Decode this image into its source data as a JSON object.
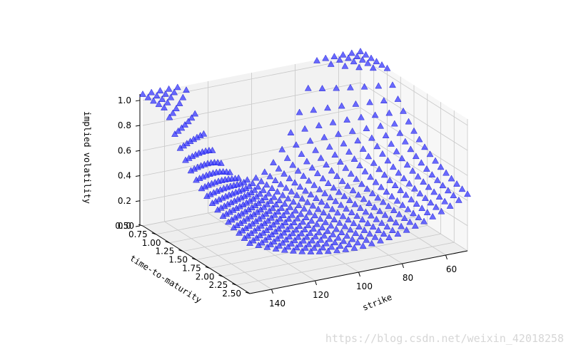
{
  "chart_data": {
    "type": "scatter",
    "projection": "3d",
    "marker": "triangle-up",
    "colors": {
      "marker_fill": "#3a3aff",
      "marker_edge": "#0000cc",
      "pane_left": "#f2f2f2",
      "pane_right": "#f7f7f7",
      "pane_floor": "#eeeeee",
      "grid": "#c8c8c8"
    },
    "xlabel": "strike",
    "ylabel": "time-to-maturity",
    "zlabel": "implied volatility",
    "x_ticks": [
      "60",
      "80",
      "100",
      "120",
      "140"
    ],
    "y_ticks": [
      "0.50",
      "0.75",
      "1.00",
      "1.25",
      "1.50",
      "1.75",
      "2.00",
      "2.25",
      "2.50"
    ],
    "z_ticks": [
      "0.0",
      "0.2",
      "0.4",
      "0.6",
      "0.8",
      "1.0"
    ],
    "xlim": [
      50,
      150
    ],
    "ylim": [
      0.5,
      2.5
    ],
    "zlim": [
      0.0,
      1.05
    ],
    "grid": true,
    "surface": {
      "strike_values": [
        50,
        54,
        58,
        62,
        66,
        70,
        74,
        78,
        82,
        86,
        90,
        94,
        98,
        102,
        106,
        110,
        114,
        118,
        122,
        126,
        130,
        134,
        138,
        142,
        146,
        150
      ],
      "maturity_values": [
        0.5,
        0.6,
        0.7,
        0.8,
        0.9,
        1.0,
        1.1,
        1.2,
        1.3,
        1.4,
        1.5,
        1.6,
        1.7,
        1.8,
        1.9,
        2.0,
        2.1,
        2.2,
        2.3,
        2.4,
        2.5
      ],
      "implied_volatility": "0.2 + 0.8 * ((strike - 100) / 50)^2 / maturity^1.5, plus a small rise at high strike"
    }
  },
  "watermark": "https://blog.csdn.net/weixin_42018258"
}
